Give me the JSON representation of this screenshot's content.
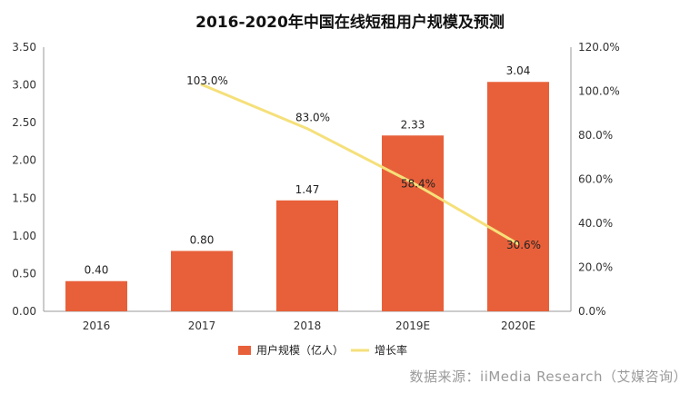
{
  "chart_data": {
    "type": "bar",
    "title": "2016-2020年中国在线短租用户规模及预测",
    "categories": [
      "2016",
      "2017",
      "2018",
      "2019E",
      "2020E"
    ],
    "series": [
      {
        "name": "用户规模（亿人）",
        "kind": "bar",
        "axis": "left",
        "values": [
          0.4,
          0.8,
          1.47,
          2.33,
          3.04
        ],
        "labels": [
          "0.40",
          "0.80",
          "1.47",
          "2.33",
          "3.04"
        ],
        "color": "#E8603A"
      },
      {
        "name": "增长率",
        "kind": "line",
        "axis": "right",
        "values": [
          null,
          103.0,
          83.0,
          58.4,
          30.6
        ],
        "labels": [
          "",
          "103.0%",
          "83.0%",
          "58.4%",
          "30.6%"
        ],
        "color": "#F5E07A"
      }
    ],
    "y_left": {
      "min": 0,
      "max": 3.5,
      "ticks": [
        "0.00",
        "0.50",
        "1.00",
        "1.50",
        "2.00",
        "2.50",
        "3.00",
        "3.50"
      ]
    },
    "y_right": {
      "min": 0,
      "max": 120,
      "ticks": [
        "0.0%",
        "20.0%",
        "40.0%",
        "60.0%",
        "80.0%",
        "100.0%",
        "120.0%"
      ]
    },
    "legend_position": "bottom-center",
    "grid": false
  },
  "source_text": "数据来源：iiMedia Research（艾媒咨询）"
}
